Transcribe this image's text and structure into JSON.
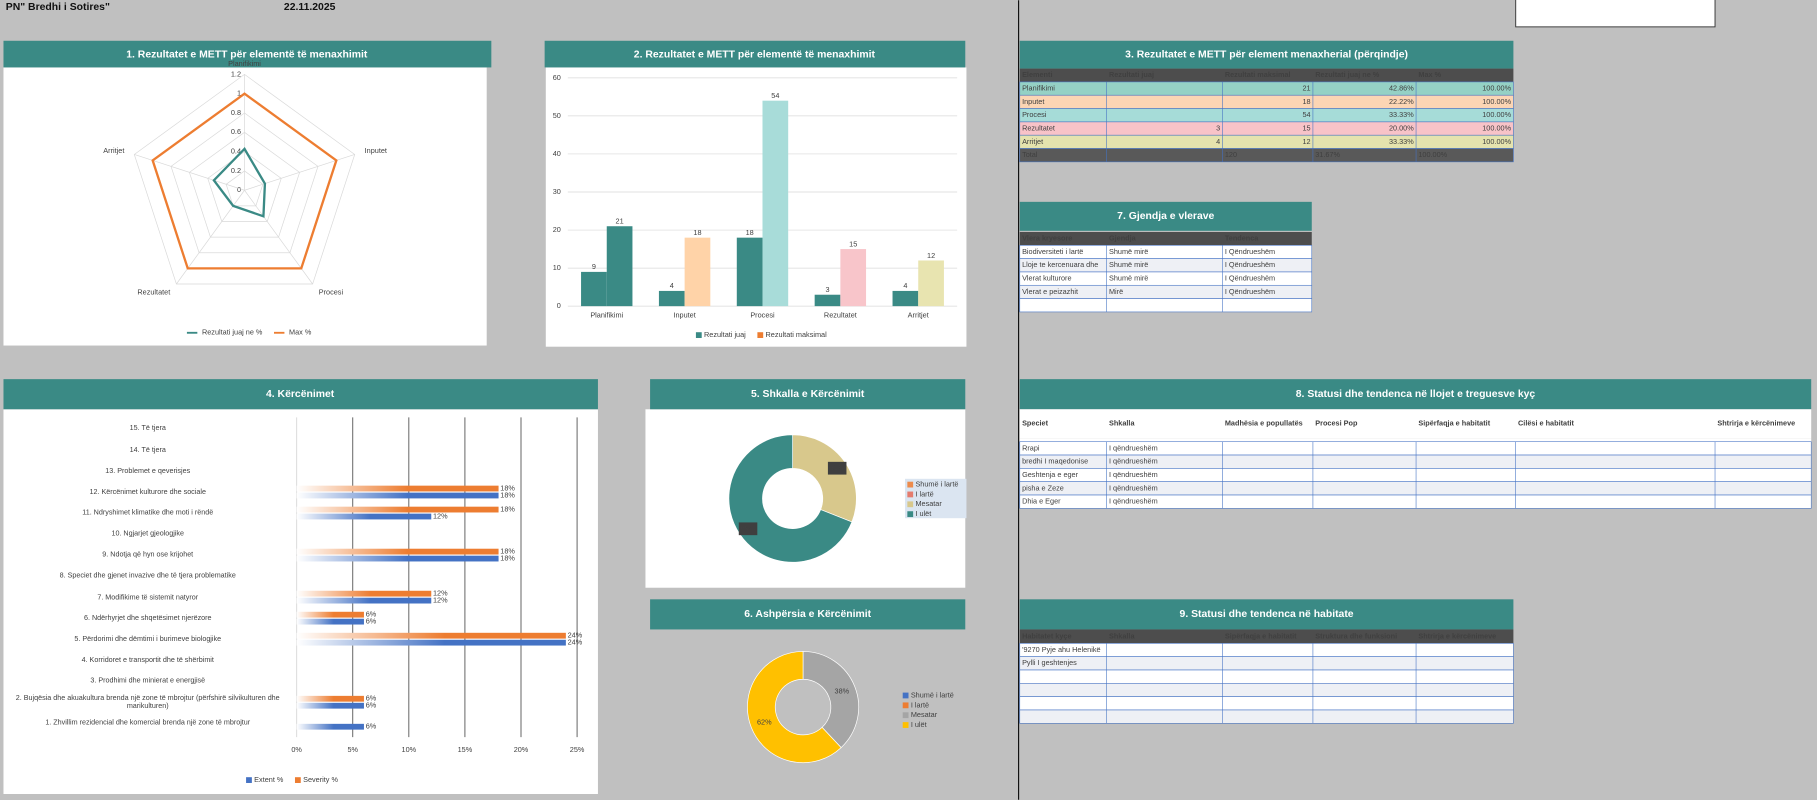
{
  "header": {
    "title": "PN\" Bredhi i Sotires\"",
    "date": "22.11.2025"
  },
  "chart_data": [
    {
      "type": "radar",
      "title": "1. Rezultatet e METT për elementë të menaxhimit",
      "categories": [
        "Planifikimi",
        "Inputet",
        "Procesi",
        "Rezultatet",
        "Arritjet"
      ],
      "series": [
        {
          "name": "Rezultati juaj ne %",
          "color": "#3a8a85",
          "values": [
            0.4286,
            0.2222,
            0.3333,
            0.2,
            0.3333
          ]
        },
        {
          "name": "Max %",
          "color": "#ed7d31",
          "values": [
            1,
            1,
            1,
            1,
            1
          ]
        }
      ],
      "rlim": [
        0,
        1.2
      ],
      "rticks": [
        0,
        0.2,
        0.4,
        0.6,
        0.8,
        1,
        1.2
      ],
      "grid": true,
      "legend": "bottom"
    },
    {
      "type": "bar",
      "title": "2. Rezultatet e METT për elementë të menaxhimit",
      "categories": [
        "Planifikimi",
        "Inputet",
        "Procesi",
        "Rezultatet",
        "Arritjet"
      ],
      "series": [
        {
          "name": "Rezultati juaj",
          "color": "#3a8a85",
          "values": [
            9,
            4,
            18,
            3,
            4
          ]
        },
        {
          "name": "Rezultati maksimal",
          "color": "#ed7d31",
          "colors": [
            "#3a8a85",
            "#ffd3a8",
            "#a8dcd9",
            "#f8c5ca",
            "#e8e4b0"
          ],
          "values": [
            21,
            18,
            54,
            15,
            12
          ]
        }
      ],
      "ylim": [
        0,
        60
      ],
      "yticks": [
        0,
        10,
        20,
        30,
        40,
        50,
        60
      ],
      "grid": true,
      "legend": "bottom"
    },
    {
      "type": "hbar",
      "title": "4. Kërcënimet",
      "categories": [
        "15. Të tjera",
        "14. Të tjera",
        "13. Problemet e qeverisjes",
        "12. Kërcënimet kulturore dhe sociale",
        "11. Ndryshimet klimatike dhe moti i rëndë",
        "10. Ngjarjet gjeologjike",
        "9. Ndotja që hyn ose krijohet",
        "8. Speciet dhe gjenet invazive dhe të tjera problematike",
        "7. Modifikime të sistemit natyror",
        "6. Ndërhyrjet dhe shqetësimet njerëzore",
        "5. Përdorimi dhe dëmtimi i burimeve biologjike",
        "4. Korridoret e transportit dhe të shërbimit",
        "3. Prodhimi dhe minierat e energjisë",
        "2. Bujqësia dhe akuakultura brenda një zone të mbrojtur (përfshirë silvikulturen dhe marikulturen)",
        "1. Zhvillim rezidencial dhe komercial brenda një zone të mbrojtur"
      ],
      "series": [
        {
          "name": "Extent %",
          "color": "#4472c4",
          "values": [
            null,
            null,
            null,
            18,
            12,
            null,
            18,
            null,
            12,
            6,
            24,
            null,
            null,
            6,
            6
          ],
          "value_labels": [
            null,
            null,
            null,
            "18%",
            "12%",
            null,
            "18%",
            null,
            "12%",
            "6%",
            "24%",
            null,
            null,
            "6%",
            "6%"
          ]
        },
        {
          "name": "Severity %",
          "color": "#ed7d31",
          "values": [
            null,
            null,
            null,
            18,
            18,
            null,
            18,
            null,
            12,
            6,
            24,
            null,
            null,
            6,
            null
          ],
          "value_labels": [
            null,
            null,
            null,
            "18%",
            "18%",
            null,
            "18%",
            null,
            "12%",
            "6%",
            "24%",
            null,
            null,
            "6%",
            null
          ]
        }
      ],
      "xlim": [
        0,
        25
      ],
      "xticks": [
        {
          "value": 0,
          "label": "0%"
        },
        {
          "value": 5,
          "label": "5%"
        },
        {
          "value": 10,
          "label": "10%"
        },
        {
          "value": 15,
          "label": "15%"
        },
        {
          "value": 20,
          "label": "20%"
        },
        {
          "value": 25,
          "label": "25%"
        }
      ],
      "grid": true,
      "legend": "bottom"
    },
    {
      "type": "donut",
      "title": "5. Shkalla e Kërcënimit",
      "categories": [
        "Shumë i lartë",
        "I lartë",
        "Mesatar",
        "I ulët"
      ],
      "values": [
        0,
        0,
        31,
        69
      ],
      "value_labels": [
        null,
        null,
        "31%",
        "69%"
      ],
      "colors": [
        "#ed8b4c",
        "#e57c6e",
        "#d8c88c",
        "#3a8a85"
      ],
      "legend": "right"
    },
    {
      "type": "donut",
      "title": "6. Ashpërsia e Kërcënimit",
      "categories": [
        "Shumë i lartë",
        "I lartë",
        "Mesatar",
        "I ulët"
      ],
      "values": [
        0,
        0,
        38,
        62
      ],
      "value_labels": [
        null,
        null,
        "38%",
        "62%"
      ],
      "colors": [
        "#4472c4",
        "#ed7d31",
        "#a5a5a5",
        "#ffc000"
      ],
      "legend": "right"
    }
  ],
  "tables": [
    {
      "title": "3. Rezultatet e METT për element menaxherial (përqindje)",
      "columns": [
        "Elementi",
        "Rezultati juaj",
        "Rezultati maksimal",
        "Rezultati juaj ne %",
        "Max %"
      ],
      "rows": [
        [
          "Planifikimi",
          null,
          21,
          "42.86%",
          "100.00%"
        ],
        [
          "Inputet",
          null,
          18,
          "22.22%",
          "100.00%"
        ],
        [
          "Procesi",
          null,
          54,
          "33.33%",
          "100.00%"
        ],
        [
          "Rezultatet",
          3,
          15,
          "20.00%",
          "100.00%"
        ],
        [
          "Arritjet",
          4,
          12,
          "33.33%",
          "100.00%"
        ],
        [
          "Total",
          null,
          120,
          "31.67%",
          "100.00%"
        ]
      ]
    },
    {
      "title": "7. Gjendja e vlerave",
      "columns": [
        "Vlera kryesore",
        "Gjendja",
        "Tendenca"
      ],
      "rows": [
        [
          "Biodiversiteti i lartë",
          "Shumë mirë",
          "I Qëndrueshëm"
        ],
        [
          "Lloje te kercenuara dhe",
          "Shumë mirë",
          "I Qëndrueshëm"
        ],
        [
          "Vlerat kulturore",
          "Shumë mirë",
          "I Qëndrueshëm"
        ],
        [
          "Vlerat e peizazhit",
          "Mirë",
          "I Qëndrueshëm"
        ],
        [
          null,
          null,
          null
        ]
      ]
    },
    {
      "title": "8. Statusi dhe tendenca në llojet e treguesve kyç",
      "columns": [
        "Speciet",
        "Shkalla",
        "Madhësia e popullatës",
        "Procesi Pop",
        "Sipërfaqja e habitatit",
        "Cilësi e habitatit",
        "Shtrirja e kërcënimeve"
      ],
      "rows": [
        [
          "Rrapi",
          "I qëndrueshëm",
          null,
          null,
          null,
          null,
          null
        ],
        [
          "bredhi I maqedonise",
          "I qëndrueshëm",
          null,
          null,
          null,
          null,
          null
        ],
        [
          "Geshtenja e eger",
          "I qëndrueshëm",
          null,
          null,
          null,
          null,
          null
        ],
        [
          "pisha e Zeze",
          "I qëndrueshëm",
          null,
          null,
          null,
          null,
          null
        ],
        [
          "Dhia e Eger",
          "I qëndrueshëm",
          null,
          null,
          null,
          null,
          null
        ]
      ]
    },
    {
      "title": "9. Statusi dhe tendenca në habitate",
      "columns": [
        "Habitatet kyçe",
        "Shkalla",
        "Sipërfaqja e habitatit",
        "Struktura dhe funksioni",
        "Shtrirja e kërcënimeve"
      ],
      "rows": [
        [
          "'9270 Pyje ahu Helenikë",
          null,
          null,
          null,
          null
        ],
        [
          "Pylli I geshtenjes",
          null,
          null,
          null,
          null
        ],
        [
          null,
          null,
          null,
          null,
          null
        ],
        [
          null,
          null,
          null,
          null,
          null
        ],
        [
          null,
          null,
          null,
          null,
          null
        ],
        [
          null,
          null,
          null,
          null,
          null
        ]
      ]
    }
  ]
}
